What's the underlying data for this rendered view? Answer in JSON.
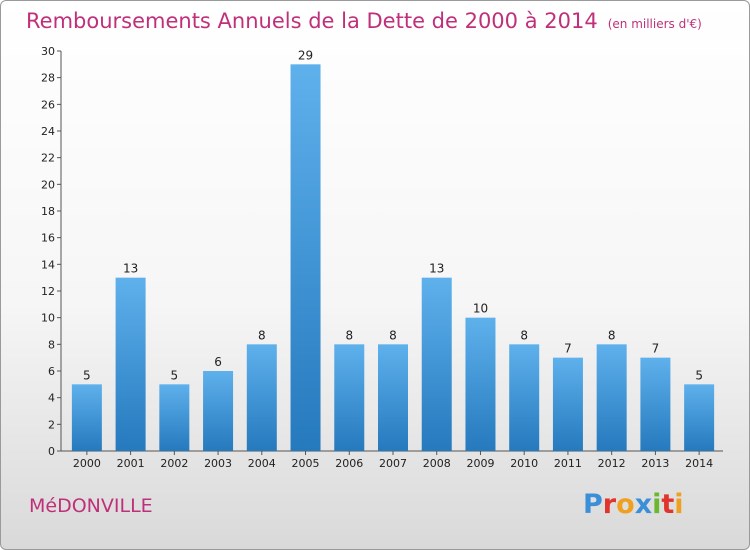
{
  "header": {
    "title": "Remboursements Annuels de la Dette de 2000 à 2014",
    "unit": "(en milliers d'€)"
  },
  "footer": {
    "commune": "MéDONVILLE",
    "logo_text": "Proxiti"
  },
  "colors": {
    "title": "#c0307a",
    "bar_light": "#5fb1ec",
    "bar_dark": "#2579bd"
  },
  "chart_data": {
    "type": "bar",
    "title": "Remboursements Annuels de la Dette de 2000 à 2014",
    "xlabel": "",
    "ylabel": "",
    "categories": [
      "2000",
      "2001",
      "2002",
      "2003",
      "2004",
      "2005",
      "2006",
      "2007",
      "2008",
      "2009",
      "2010",
      "2011",
      "2012",
      "2013",
      "2014"
    ],
    "values": [
      5,
      13,
      5,
      6,
      8,
      29,
      8,
      8,
      13,
      10,
      8,
      7,
      8,
      7,
      5
    ],
    "ylim": [
      0,
      30
    ],
    "yticks": [
      0,
      2,
      4,
      6,
      8,
      10,
      12,
      14,
      16,
      18,
      20,
      22,
      24,
      26,
      28,
      30
    ],
    "grid": false,
    "legend": "none"
  }
}
